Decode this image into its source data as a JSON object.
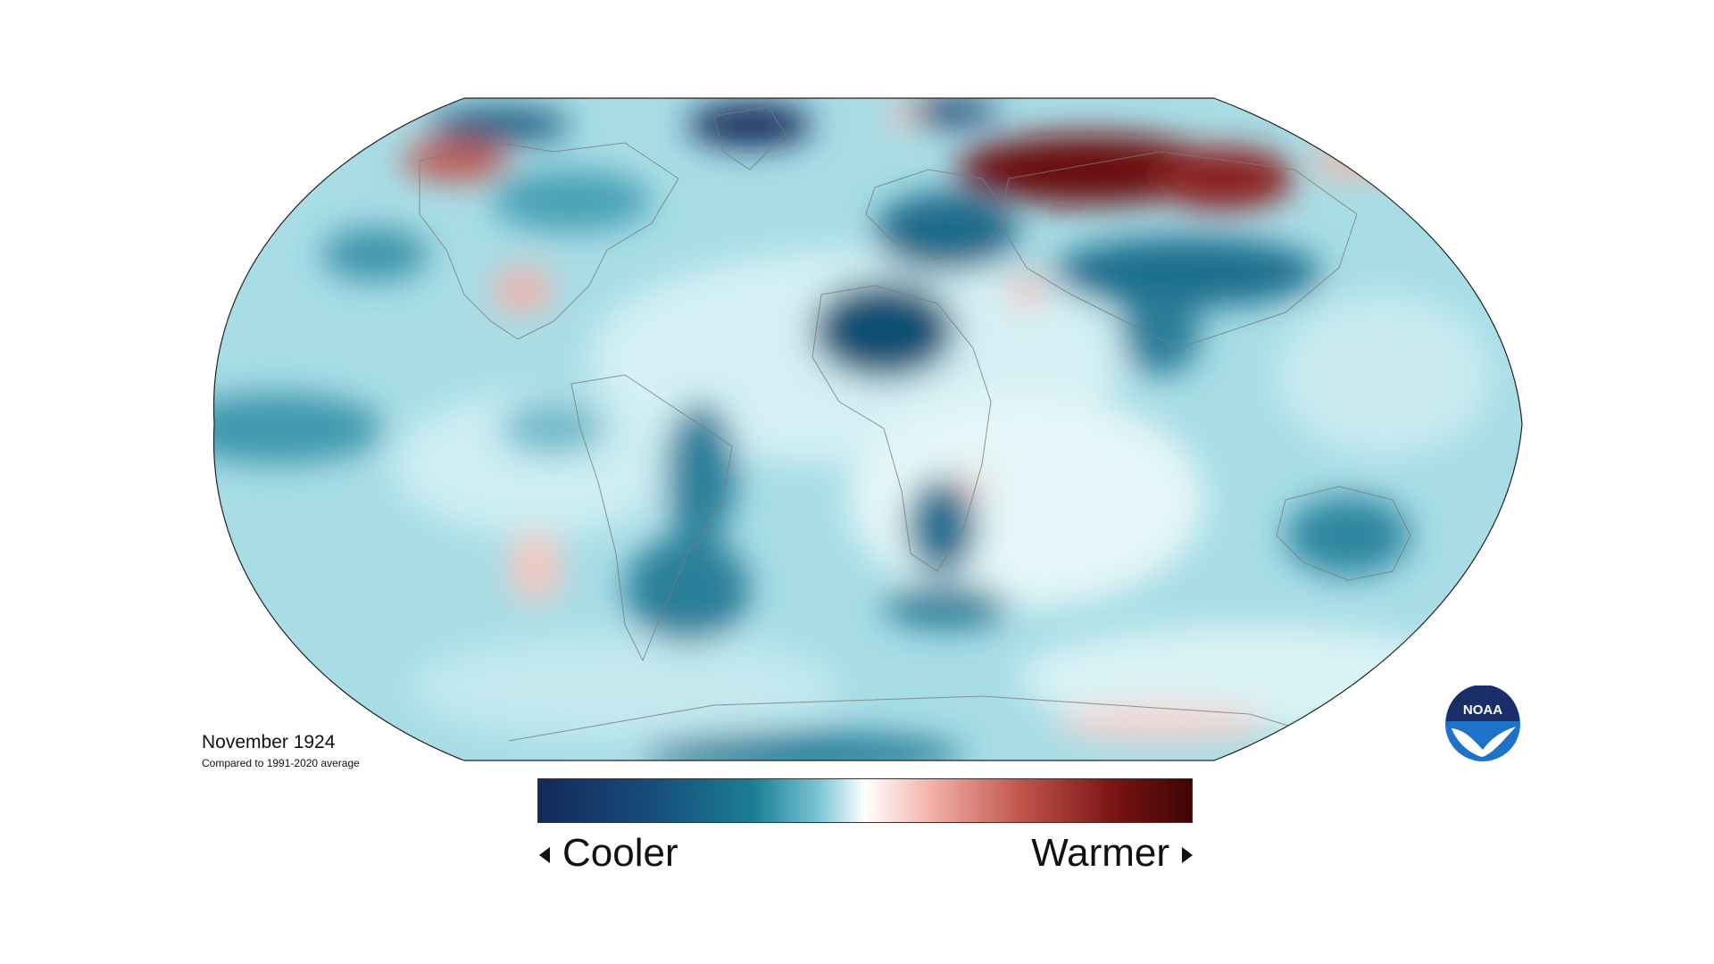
{
  "caption": {
    "title": "November 1924",
    "subtitle": "Compared to 1991-2020 average"
  },
  "legend": {
    "low_label": "Cooler",
    "high_label": "Warmer",
    "colors": [
      "#14295c",
      "#1a6f8c",
      "#7cc5d4",
      "#ffffff",
      "#f2a59b",
      "#b8403a",
      "#4a0606"
    ]
  },
  "logo": {
    "text": "NOAA",
    "icon": "noaa-logo-icon"
  },
  "map": {
    "projection": "robinson",
    "base_color": "#9fd8e3",
    "anomaly_colors": {
      "strong_cool": "#0f4f72",
      "cool": "#3f97ad",
      "mild_cool": "#b8e5ec",
      "neutral": "#ffffff",
      "warm": "#f1b2ab",
      "strong_warm": "#6b0a0a"
    }
  }
}
